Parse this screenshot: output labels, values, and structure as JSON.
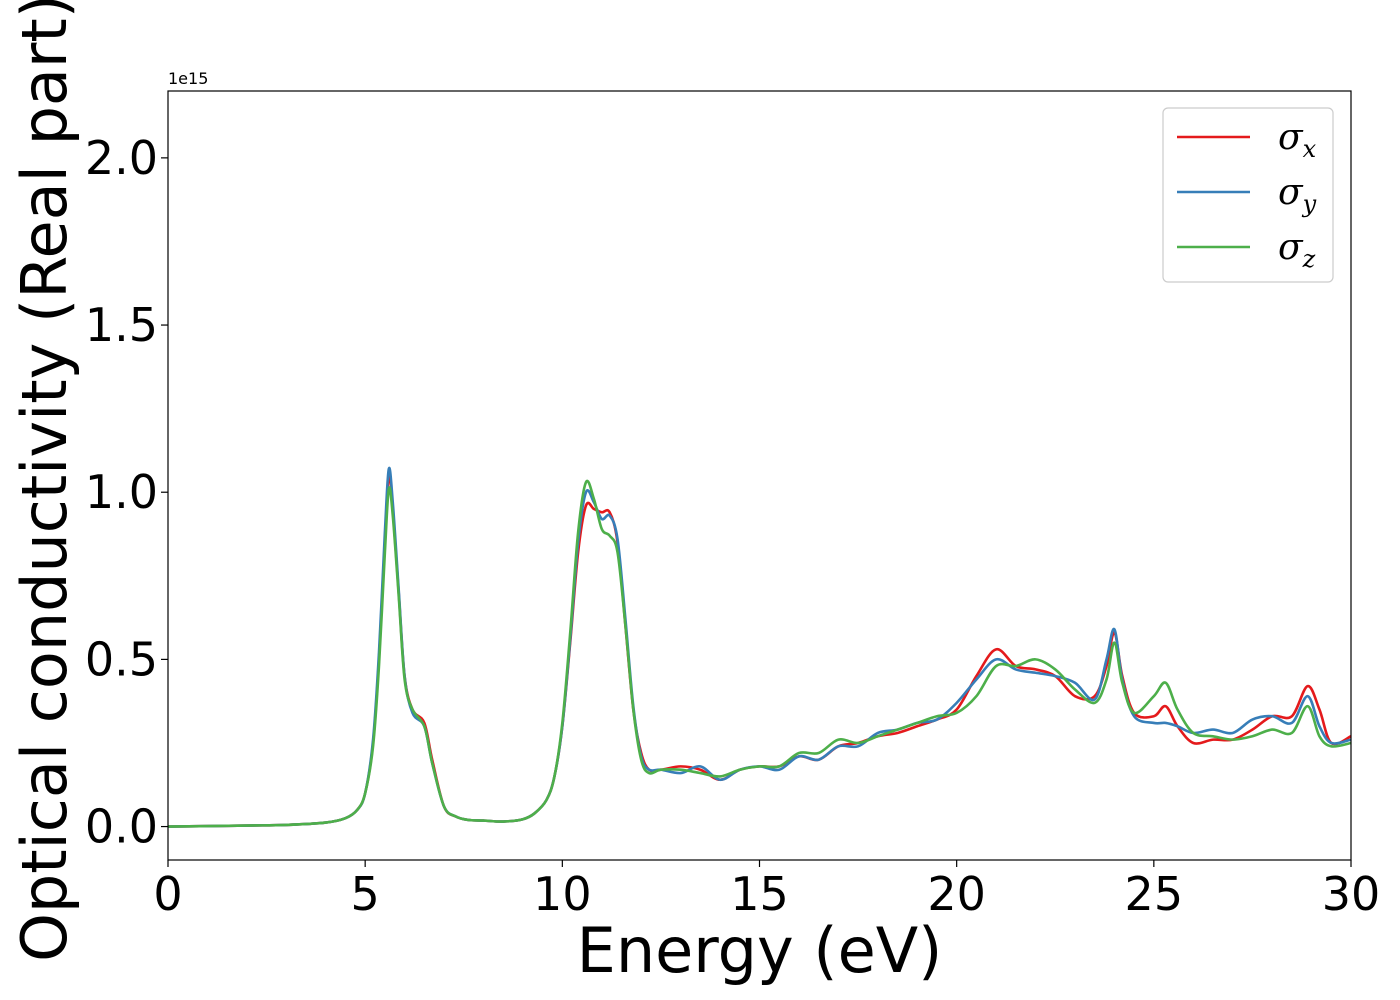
{
  "chart_data": {
    "type": "line",
    "xlabel": "Energy (eV)",
    "ylabel": "Optical conductivity (Real part)",
    "y_offset_text": "1e15",
    "xlim": [
      0,
      30
    ],
    "ylim": [
      -0.1,
      2.2
    ],
    "y_scale_factor": 1000000000000000.0,
    "xticks": [
      0,
      5,
      10,
      15,
      20,
      25,
      30
    ],
    "xtick_labels": [
      "0",
      "5",
      "10",
      "15",
      "20",
      "25",
      "30"
    ],
    "yticks": [
      0.0,
      0.5,
      1.0,
      1.5,
      2.0
    ],
    "ytick_labels": [
      "0.0",
      "0.5",
      "1.0",
      "1.5",
      "2.0"
    ],
    "grid": false,
    "legend_position": "top-right",
    "series": [
      {
        "name": "σx",
        "legend_base": "σ",
        "legend_sub": "x",
        "color": "#e41a1c",
        "x": [
          0,
          2,
          3,
          4,
          4.5,
          4.8,
          5.0,
          5.2,
          5.35,
          5.5,
          5.6,
          5.7,
          5.85,
          6.0,
          6.2,
          6.5,
          6.7,
          7.0,
          7.3,
          7.6,
          8.0,
          8.5,
          9.0,
          9.3,
          9.6,
          9.8,
          10.0,
          10.2,
          10.4,
          10.6,
          10.8,
          11.0,
          11.2,
          11.4,
          11.6,
          11.8,
          12.0,
          12.2,
          12.5,
          13.0,
          13.5,
          14.0,
          14.5,
          15.0,
          15.5,
          16.0,
          16.5,
          17.0,
          17.5,
          18.0,
          18.5,
          19.0,
          19.5,
          20.0,
          20.5,
          21.0,
          21.5,
          22.0,
          22.5,
          23.0,
          23.5,
          23.8,
          24.0,
          24.2,
          24.5,
          25.0,
          25.3,
          25.6,
          26.0,
          26.5,
          27.0,
          27.5,
          28.0,
          28.5,
          28.9,
          29.2,
          29.5,
          30.0
        ],
        "y": [
          0.0,
          0.003,
          0.005,
          0.012,
          0.025,
          0.05,
          0.1,
          0.25,
          0.5,
          0.85,
          1.05,
          0.95,
          0.7,
          0.45,
          0.35,
          0.31,
          0.2,
          0.06,
          0.03,
          0.02,
          0.018,
          0.015,
          0.022,
          0.04,
          0.08,
          0.15,
          0.3,
          0.55,
          0.82,
          0.96,
          0.95,
          0.94,
          0.94,
          0.85,
          0.6,
          0.35,
          0.22,
          0.17,
          0.17,
          0.18,
          0.17,
          0.14,
          0.17,
          0.18,
          0.18,
          0.21,
          0.2,
          0.24,
          0.25,
          0.27,
          0.28,
          0.3,
          0.32,
          0.35,
          0.45,
          0.53,
          0.48,
          0.47,
          0.45,
          0.39,
          0.39,
          0.48,
          0.58,
          0.45,
          0.34,
          0.33,
          0.36,
          0.3,
          0.25,
          0.26,
          0.26,
          0.29,
          0.33,
          0.33,
          0.42,
          0.35,
          0.25,
          0.27
        ]
      },
      {
        "name": "σy",
        "legend_base": "σ",
        "legend_sub": "y",
        "color": "#377eb8",
        "x": [
          0,
          2,
          3,
          4,
          4.5,
          4.8,
          5.0,
          5.2,
          5.35,
          5.5,
          5.6,
          5.7,
          5.85,
          6.0,
          6.2,
          6.5,
          6.7,
          7.0,
          7.3,
          7.6,
          8.0,
          8.5,
          9.0,
          9.3,
          9.6,
          9.8,
          10.0,
          10.2,
          10.4,
          10.6,
          10.8,
          11.0,
          11.2,
          11.4,
          11.6,
          11.8,
          12.0,
          12.2,
          12.5,
          13.0,
          13.5,
          14.0,
          14.5,
          15.0,
          15.5,
          16.0,
          16.5,
          17.0,
          17.5,
          18.0,
          18.5,
          19.0,
          19.5,
          20.0,
          20.5,
          21.0,
          21.5,
          22.0,
          22.5,
          23.0,
          23.5,
          23.8,
          24.0,
          24.2,
          24.5,
          25.0,
          25.3,
          25.6,
          26.0,
          26.5,
          27.0,
          27.5,
          28.0,
          28.5,
          28.9,
          29.2,
          29.5,
          30.0
        ],
        "y": [
          0.0,
          0.003,
          0.005,
          0.012,
          0.025,
          0.05,
          0.1,
          0.26,
          0.52,
          0.88,
          1.07,
          0.97,
          0.71,
          0.45,
          0.34,
          0.3,
          0.19,
          0.06,
          0.03,
          0.02,
          0.018,
          0.015,
          0.022,
          0.04,
          0.08,
          0.15,
          0.3,
          0.56,
          0.85,
          1.0,
          0.97,
          0.92,
          0.93,
          0.86,
          0.62,
          0.36,
          0.21,
          0.17,
          0.17,
          0.16,
          0.18,
          0.14,
          0.17,
          0.18,
          0.17,
          0.21,
          0.2,
          0.24,
          0.24,
          0.28,
          0.29,
          0.31,
          0.32,
          0.37,
          0.44,
          0.5,
          0.47,
          0.46,
          0.45,
          0.43,
          0.38,
          0.5,
          0.59,
          0.44,
          0.33,
          0.31,
          0.31,
          0.3,
          0.28,
          0.29,
          0.28,
          0.32,
          0.33,
          0.31,
          0.39,
          0.3,
          0.25,
          0.26
        ]
      },
      {
        "name": "σz",
        "legend_base": "σ",
        "legend_sub": "z",
        "color": "#4daf4a",
        "x": [
          0,
          2,
          3,
          4,
          4.5,
          4.8,
          5.0,
          5.2,
          5.35,
          5.5,
          5.6,
          5.7,
          5.85,
          6.0,
          6.2,
          6.5,
          6.7,
          7.0,
          7.3,
          7.6,
          8.0,
          8.5,
          9.0,
          9.3,
          9.6,
          9.8,
          10.0,
          10.2,
          10.4,
          10.6,
          10.8,
          11.0,
          11.2,
          11.4,
          11.6,
          11.8,
          12.0,
          12.2,
          12.5,
          13.0,
          13.5,
          14.0,
          14.5,
          15.0,
          15.5,
          16.0,
          16.5,
          17.0,
          17.5,
          18.0,
          18.5,
          19.0,
          19.5,
          20.0,
          20.5,
          21.0,
          21.5,
          22.0,
          22.5,
          23.0,
          23.5,
          23.8,
          24.0,
          24.2,
          24.5,
          25.0,
          25.3,
          25.6,
          26.0,
          26.5,
          27.0,
          27.5,
          28.0,
          28.5,
          28.9,
          29.2,
          29.5,
          30.0
        ],
        "y": [
          0.0,
          0.003,
          0.005,
          0.012,
          0.025,
          0.05,
          0.1,
          0.24,
          0.48,
          0.82,
          1.01,
          0.93,
          0.69,
          0.44,
          0.35,
          0.3,
          0.19,
          0.06,
          0.03,
          0.02,
          0.018,
          0.015,
          0.022,
          0.04,
          0.08,
          0.15,
          0.31,
          0.58,
          0.88,
          1.03,
          0.98,
          0.89,
          0.87,
          0.82,
          0.6,
          0.35,
          0.2,
          0.16,
          0.17,
          0.17,
          0.16,
          0.15,
          0.17,
          0.18,
          0.18,
          0.22,
          0.22,
          0.26,
          0.25,
          0.27,
          0.29,
          0.31,
          0.33,
          0.34,
          0.39,
          0.48,
          0.48,
          0.5,
          0.47,
          0.41,
          0.37,
          0.44,
          0.55,
          0.43,
          0.34,
          0.39,
          0.43,
          0.35,
          0.28,
          0.27,
          0.26,
          0.27,
          0.29,
          0.28,
          0.36,
          0.27,
          0.24,
          0.25
        ]
      }
    ]
  }
}
